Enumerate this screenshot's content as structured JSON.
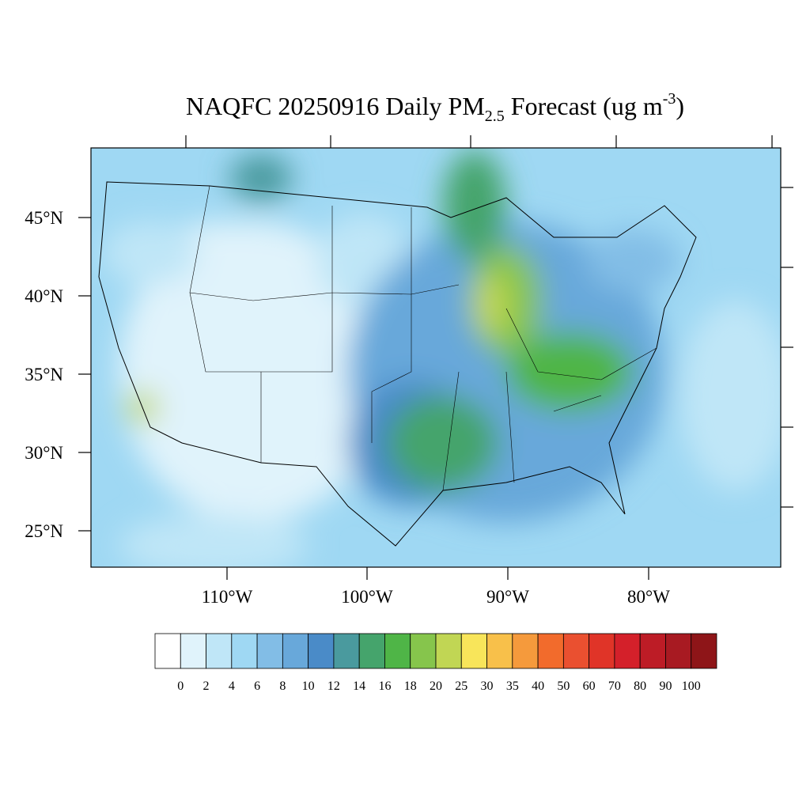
{
  "title": {
    "main": "NAQFC 20250916 Daily PM",
    "subscript": "2.5",
    "after": " Forecast (ug m",
    "superscript": "-3",
    "end": ")"
  },
  "lat_labels": [
    "45°N",
    "40°N",
    "35°N",
    "30°N",
    "25°N"
  ],
  "lon_labels": [
    "110°W",
    "100°W",
    "90°W",
    "80°W"
  ],
  "colorbar": {
    "labels": [
      0,
      2,
      4,
      6,
      8,
      10,
      12,
      14,
      16,
      18,
      20,
      25,
      30,
      35,
      40,
      50,
      60,
      70,
      80,
      90,
      100
    ],
    "colors": [
      "#ffffff",
      "#e0f3fb",
      "#bfe6f7",
      "#9fd8f3",
      "#82bde6",
      "#68a8da",
      "#4a8bc8",
      "#4a9a9e",
      "#45a46c",
      "#4fb547",
      "#86c54c",
      "#c1d654",
      "#f8e55a",
      "#f8c04a",
      "#f59a3c",
      "#f26b2c",
      "#ea5030",
      "#e03428",
      "#d4202a",
      "#bd1c26",
      "#a81a22",
      "#8e1518"
    ]
  }
}
